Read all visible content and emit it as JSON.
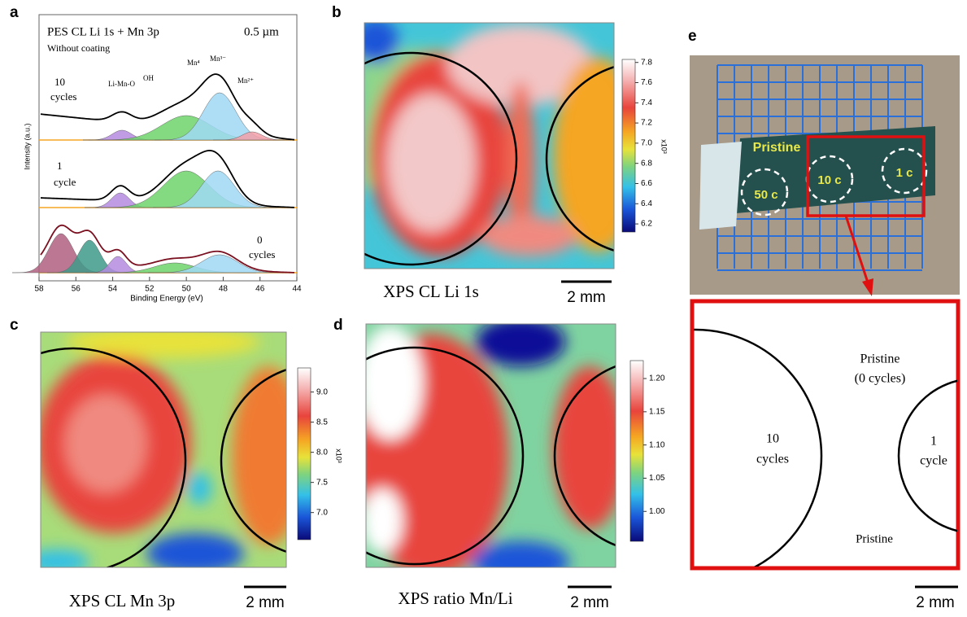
{
  "panels": {
    "a": {
      "label": "a",
      "title": "PES CL Li 1s + Mn 3p",
      "depth": "0.5 µm",
      "subtitle": "Without coating",
      "y_label": "Intensity (a.u.)",
      "x_label": "Binding Energy (eV)",
      "xlim": [
        58,
        44
      ],
      "xticks": [
        58,
        56,
        54,
        52,
        50,
        48,
        46,
        44
      ],
      "peaks": [
        "Li-Mn-O",
        "OH",
        "Mn⁴",
        "Mn³⁻",
        "Mn²⁺"
      ],
      "spectra": [
        [
          "10",
          "cycles"
        ],
        [
          "1",
          "cycle"
        ],
        [
          "0",
          "cycles"
        ]
      ]
    },
    "b": {
      "label": "b",
      "caption": "XPS CL Li 1s",
      "scale": "2 mm",
      "multiplier": "x10³",
      "clim": [
        6.12,
        7.83
      ],
      "cticks": [
        7.8,
        7.6,
        7.4,
        7.2,
        {
          "value": 7,
          "label": "7.0"
        },
        6.8,
        6.6,
        6.4,
        6.2
      ]
    },
    "c": {
      "label": "c",
      "caption": "XPS CL Mn 3p",
      "scale": "2 mm",
      "multiplier": "x10³",
      "clim": [
        6.55,
        9.4
      ],
      "cticks": [
        {
          "value": 9,
          "label": "9.0"
        },
        8.5,
        {
          "value": 8,
          "label": "8.0"
        },
        7.5,
        {
          "value": 7,
          "label": "7.0"
        }
      ]
    },
    "d": {
      "label": "d",
      "caption": "XPS ratio Mn/Li",
      "scale": "2 mm",
      "clim": [
        0.955,
        1.227
      ],
      "cticks": [
        {
          "value": 1.2,
          "label": "1.20"
        },
        1.15,
        {
          "value": 1.1,
          "label": "1.10"
        },
        1.05,
        {
          "value": 1,
          "label": "1.00"
        }
      ]
    },
    "e": {
      "label": "e",
      "photo": {
        "title": "Pristine",
        "spots": [
          "50 c",
          "10 c",
          "1 c"
        ]
      },
      "zoom": {
        "top": [
          "Pristine",
          "(0 cycles)"
        ],
        "left": [
          "10",
          "cycles"
        ],
        "right": [
          "1",
          "cycle"
        ],
        "bottom": "Pristine"
      },
      "scale": "2 mm"
    }
  }
}
